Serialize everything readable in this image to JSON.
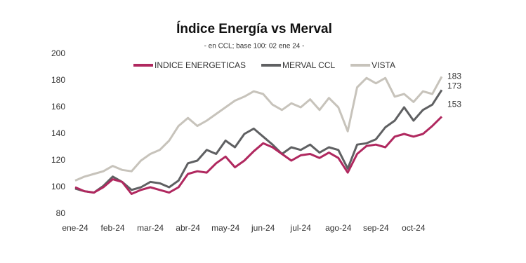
{
  "chart_data": {
    "type": "line",
    "title": "Índice Energía vs Merval",
    "subtitle": "- en CCL; base 100: 02 ene 24 -",
    "categories": [
      "ene-24",
      null,
      null,
      null,
      "feb-24",
      null,
      null,
      null,
      "mar-24",
      null,
      null,
      null,
      "abr-24",
      null,
      null,
      null,
      "may-24",
      null,
      null,
      null,
      "jun-24",
      null,
      null,
      null,
      "jul-24",
      null,
      null,
      null,
      "ago-24",
      null,
      null,
      null,
      "sep-24",
      null,
      null,
      null,
      "oct-24",
      null,
      null,
      null
    ],
    "series": [
      {
        "name": "INDICE ENERGETICAS",
        "color": "#b0285f",
        "values": [
          100,
          97,
          96,
          100,
          106,
          104,
          95,
          98,
          100,
          98,
          96,
          100,
          110,
          112,
          111,
          118,
          123,
          115,
          120,
          127,
          133,
          130,
          125,
          120,
          124,
          125,
          122,
          126,
          122,
          111,
          125,
          131,
          132,
          130,
          138,
          140,
          138,
          140,
          146,
          153
        ]
      },
      {
        "name": "MERVAL CCL",
        "color": "#5f6062",
        "values": [
          99,
          97,
          96,
          101,
          108,
          104,
          98,
          100,
          104,
          103,
          100,
          105,
          118,
          120,
          128,
          125,
          135,
          130,
          140,
          144,
          138,
          132,
          125,
          130,
          128,
          132,
          126,
          130,
          128,
          114,
          132,
          133,
          136,
          145,
          150,
          160,
          150,
          158,
          162,
          173
        ]
      },
      {
        "name": "VISTA",
        "color": "#c7c3bb",
        "values": [
          105,
          108,
          110,
          112,
          116,
          113,
          112,
          120,
          125,
          128,
          135,
          146,
          152,
          146,
          150,
          155,
          160,
          165,
          168,
          172,
          170,
          162,
          158,
          163,
          160,
          166,
          158,
          167,
          160,
          142,
          175,
          182,
          178,
          182,
          168,
          170,
          164,
          172,
          170,
          183
        ]
      }
    ],
    "ylim": [
      80,
      200
    ],
    "yticks": [
      80,
      100,
      120,
      140,
      160,
      180,
      200
    ],
    "grid": false,
    "legend": "top"
  }
}
